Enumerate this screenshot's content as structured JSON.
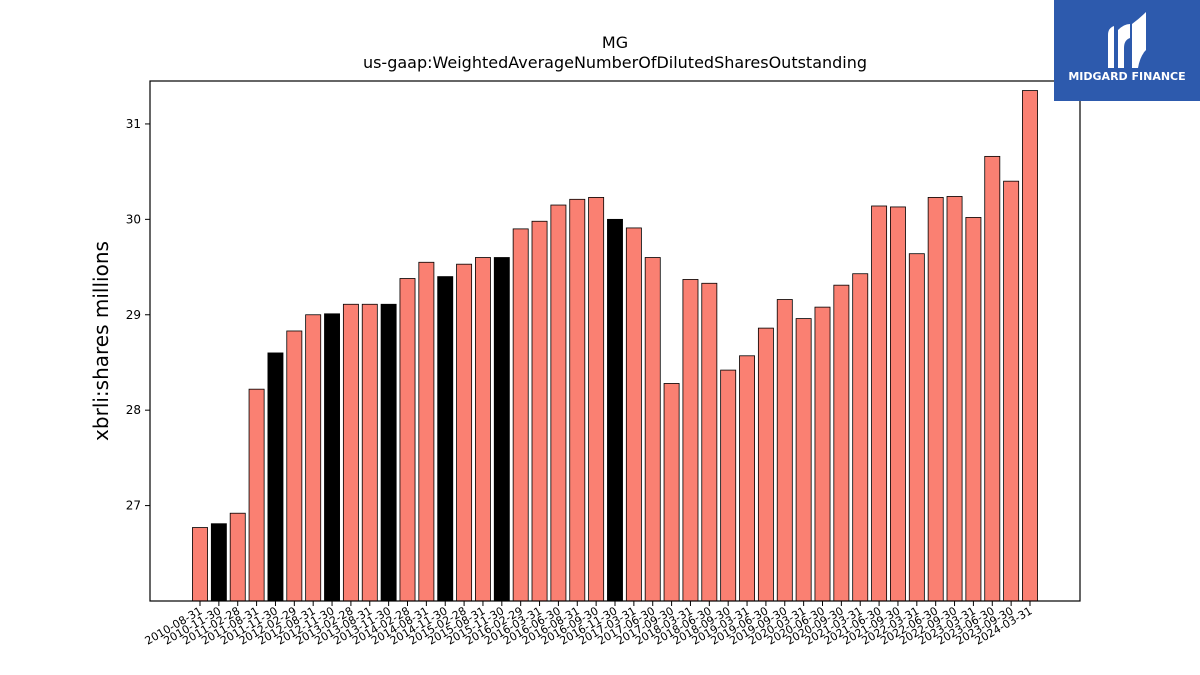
{
  "chart_data": {
    "type": "bar",
    "title": "MG",
    "subtitle": "us-gaap:WeightedAverageNumberOfDilutedSharesOutstanding",
    "ylabel": "xbrli:shares millions",
    "xlabel": "",
    "ylim": [
      26.0,
      31.45
    ],
    "yticks": [
      27,
      28,
      29,
      30,
      31
    ],
    "grid": false,
    "colors": {
      "normal": "#fa8072",
      "highlight": "#000000"
    },
    "categories": [
      "2010-08-31",
      "2010-11-30",
      "2011-02-28",
      "2011-08-31",
      "2011-11-30",
      "2012-02-29",
      "2012-08-31",
      "2012-11-30",
      "2013-02-28",
      "2013-08-31",
      "2013-11-30",
      "2014-02-28",
      "2014-08-31",
      "2014-11-30",
      "2015-02-28",
      "2015-08-31",
      "2015-11-30",
      "2016-02-29",
      "2016-03-31",
      "2016-06-30",
      "2016-08-31",
      "2016-09-30",
      "2016-11-30",
      "2017-03-31",
      "2017-06-30",
      "2017-09-30",
      "2018-03-31",
      "2018-06-30",
      "2018-09-30",
      "2019-03-31",
      "2019-06-30",
      "2019-09-30",
      "2020-03-31",
      "2020-06-30",
      "2020-09-30",
      "2021-03-31",
      "2021-06-30",
      "2021-09-30",
      "2022-03-31",
      "2022-06-30",
      "2022-09-30",
      "2023-03-31",
      "2023-06-30",
      "2023-09-30",
      "2024-03-31"
    ],
    "values": [
      26.77,
      26.81,
      26.92,
      28.22,
      28.6,
      28.83,
      29.0,
      29.01,
      29.11,
      29.11,
      29.11,
      29.38,
      29.55,
      29.4,
      29.53,
      29.6,
      29.6,
      29.9,
      29.98,
      30.15,
      30.21,
      30.23,
      30.0,
      29.91,
      29.6,
      28.28,
      29.37,
      29.33,
      28.42,
      28.57,
      28.86,
      29.16,
      28.96,
      29.08,
      29.31,
      29.43,
      30.14,
      30.13,
      29.64,
      30.23,
      30.24,
      30.02,
      30.66,
      30.4,
      31.35
    ],
    "highlighted": [
      false,
      true,
      false,
      false,
      true,
      false,
      false,
      true,
      false,
      false,
      true,
      false,
      false,
      true,
      false,
      false,
      true,
      false,
      false,
      false,
      false,
      false,
      true,
      false,
      false,
      false,
      false,
      false,
      false,
      false,
      false,
      false,
      false,
      false,
      false,
      false,
      false,
      false,
      false,
      false,
      false,
      false,
      false,
      false,
      false
    ]
  },
  "logo": {
    "text": "MIDGARD FINANCE",
    "icon": "midgard-logo-icon",
    "background": "#2d5aad"
  }
}
